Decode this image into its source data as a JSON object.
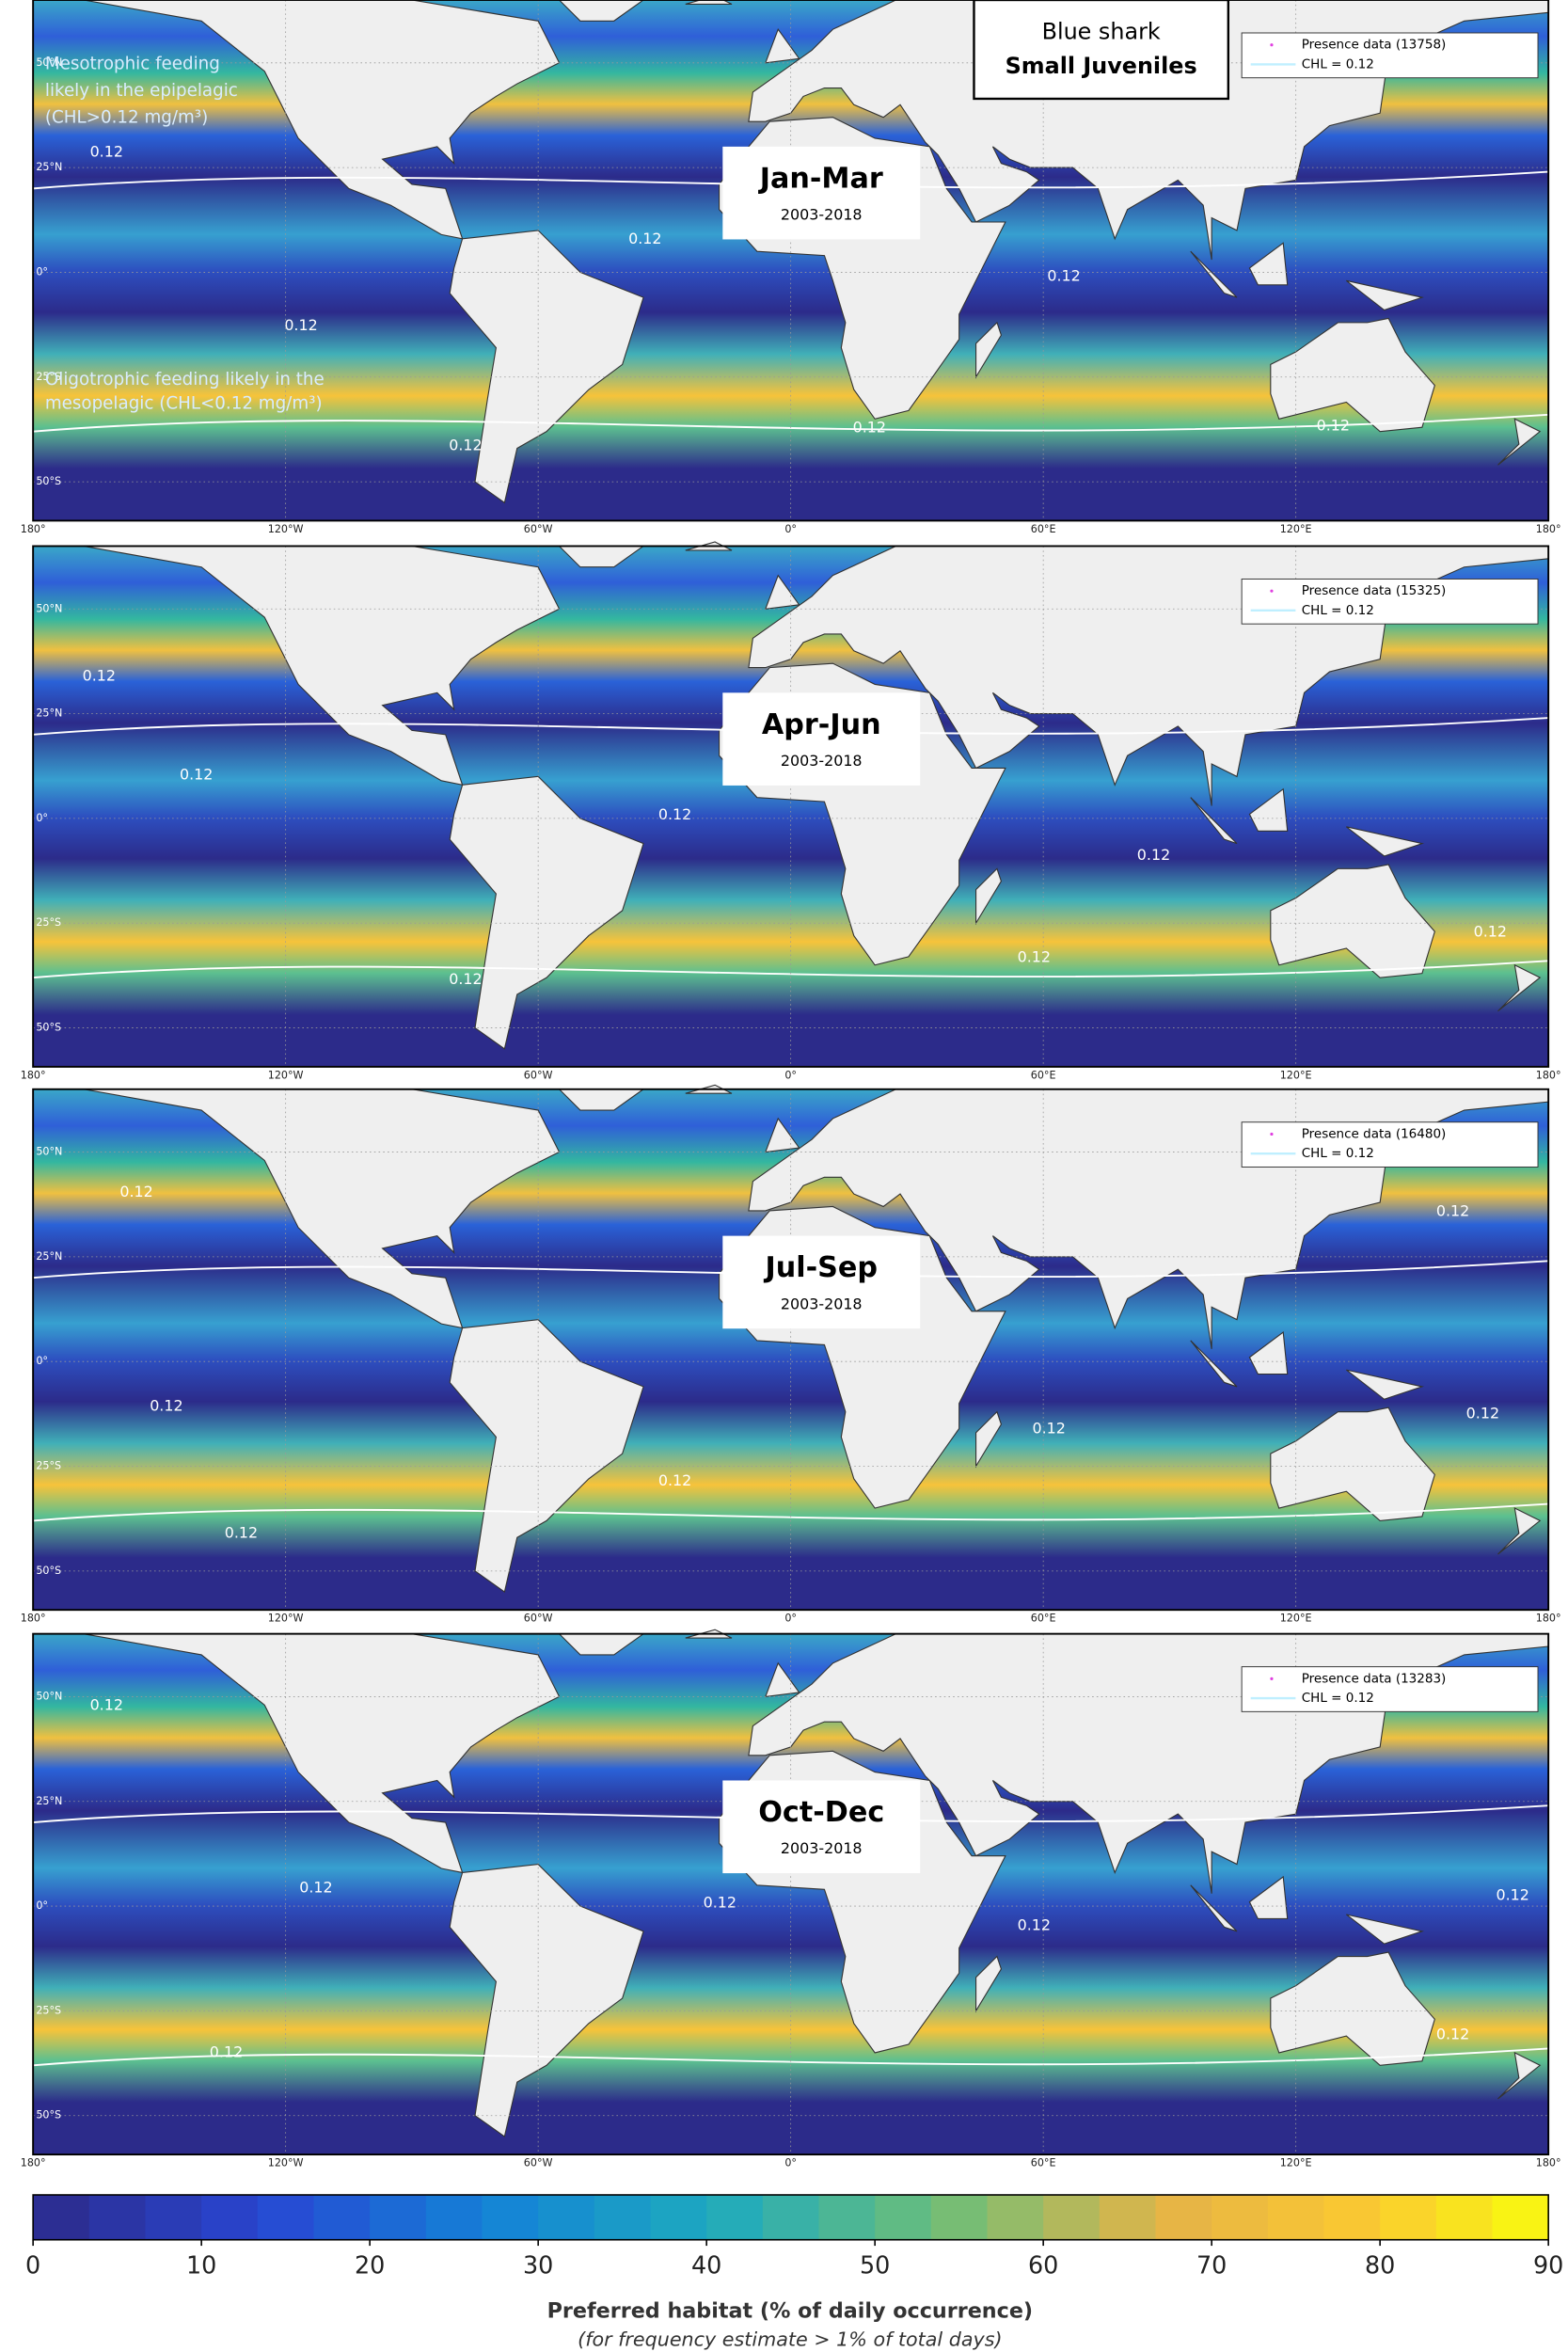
{
  "figure": {
    "title": {
      "species": "Blue shark",
      "stage": "Small Juveniles"
    },
    "annotations": {
      "mesotrophic": [
        "Mesotrophic  feeding",
        "likely in the epipelagic",
        "(CHL>0.12 mg/m³)"
      ],
      "oligotrophic": [
        "Oligotrophic feeding likely in the",
        "mesopelagic (CHL<0.12 mg/m³)"
      ]
    },
    "contour_label": "0.12",
    "panels": [
      {
        "season": "Jan-Mar",
        "years": "2003-2018",
        "legend": {
          "presence": "Presence data (13758)",
          "chl": "CHL = 0.12"
        }
      },
      {
        "season": "Apr-Jun",
        "years": "2003-2018",
        "legend": {
          "presence": "Presence data (15325)",
          "chl": "CHL = 0.12"
        }
      },
      {
        "season": "Jul-Sep",
        "years": "2003-2018",
        "legend": {
          "presence": "Presence data (16480)",
          "chl": "CHL = 0.12"
        }
      },
      {
        "season": "Oct-Dec",
        "years": "2003-2018",
        "legend": {
          "presence": "Presence data (13283)",
          "chl": "CHL = 0.12"
        }
      }
    ],
    "lat_ticks": [
      {
        "value": 50,
        "label": "50°N"
      },
      {
        "value": 25,
        "label": "25°N"
      },
      {
        "value": 0,
        "label": "0°"
      },
      {
        "value": -25,
        "label": "25°S"
      },
      {
        "value": -50,
        "label": "50°S"
      }
    ],
    "lon_ticks": [
      {
        "value": -180,
        "label": "180°"
      },
      {
        "value": -120,
        "label": "120°W"
      },
      {
        "value": -60,
        "label": "60°W"
      },
      {
        "value": 0,
        "label": "0°"
      },
      {
        "value": 60,
        "label": "60°E"
      },
      {
        "value": 120,
        "label": "120°E"
      },
      {
        "value": 180,
        "label": "180°"
      }
    ],
    "colorbar": {
      "lim": [
        0,
        90
      ],
      "ticks": [
        0,
        10,
        20,
        30,
        40,
        50,
        60,
        70,
        80,
        90
      ],
      "label": "Preferred habitat (% of daily occurrence)",
      "note": "(for frequency estimate > 1% of total days)"
    }
  }
}
